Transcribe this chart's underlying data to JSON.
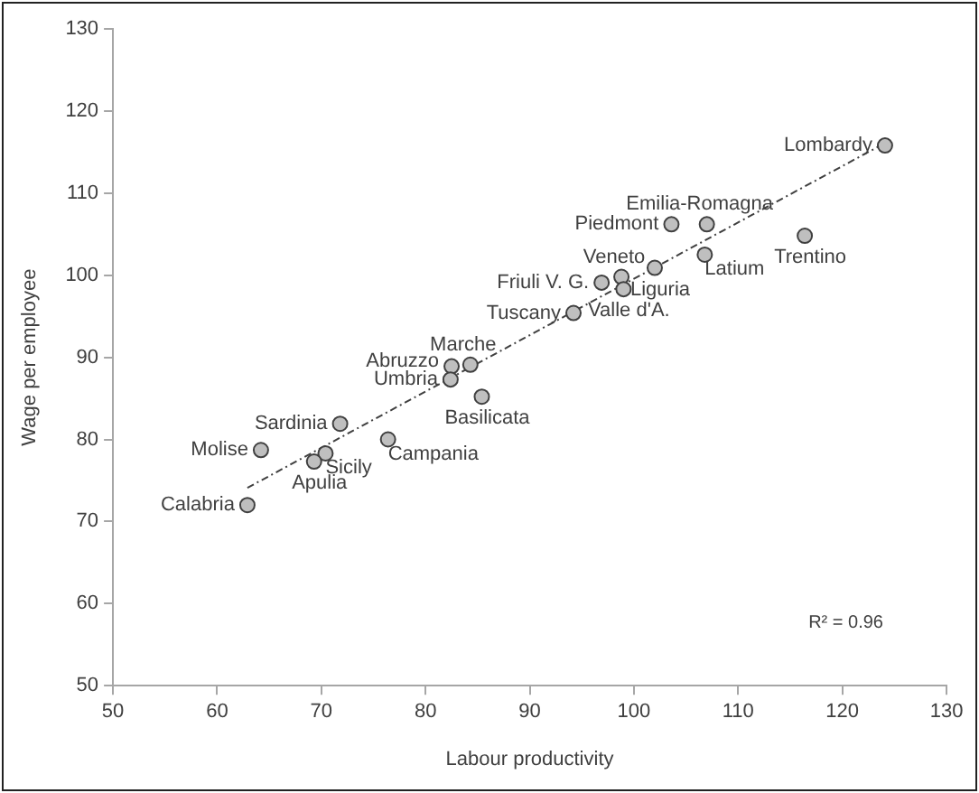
{
  "chart_data": {
    "type": "scatter",
    "xlabel": "Labour productivity",
    "ylabel": "Wage per employee",
    "xlim": [
      50,
      130
    ],
    "xticks": [
      50,
      60,
      70,
      80,
      90,
      100,
      110,
      120,
      130
    ],
    "ylim": [
      50,
      130
    ],
    "yticks": [
      50,
      60,
      70,
      80,
      90,
      100,
      110,
      120,
      130
    ],
    "grid": false,
    "legend": false,
    "series": [
      {
        "marker": "circle",
        "color": "#bfbfbf",
        "x": [
          124.1,
          107.0,
          103.6,
          116.4,
          106.8,
          98.8,
          102.0,
          96.9,
          99.0,
          94.2,
          84.3,
          82.5,
          82.4,
          85.4,
          71.8,
          64.2,
          76.4,
          70.4,
          69.3,
          62.9
        ],
        "values": [
          115.8,
          106.2,
          106.2,
          104.8,
          102.5,
          99.8,
          100.9,
          99.1,
          98.3,
          95.4,
          89.1,
          88.9,
          87.3,
          85.2,
          81.9,
          78.7,
          80.0,
          78.3,
          77.3,
          72.0
        ]
      },
      {
        "type": "line",
        "marker": "none",
        "line_style": "dashed",
        "color": "#404040",
        "x": [
          62.9,
          124.1
        ],
        "values": [
          74.1,
          116.1
        ]
      }
    ],
    "annotations": [
      {
        "text": "Lombardy",
        "x": 124.1,
        "y": 115.8
      },
      {
        "text": "Emilia-Romagna",
        "x": 107.0,
        "y": 106.2
      },
      {
        "text": "Piedmont",
        "x": 103.6,
        "y": 106.2
      },
      {
        "text": "Trentino",
        "x": 116.4,
        "y": 104.8
      },
      {
        "text": "Latium",
        "x": 106.8,
        "y": 102.5
      },
      {
        "text": "Veneto",
        "x": 98.8,
        "y": 99.8
      },
      {
        "text": "Liguria",
        "x": 102.0,
        "y": 100.9
      },
      {
        "text": "Friuli V. G.",
        "x": 96.9,
        "y": 99.1
      },
      {
        "text": "Valle d'A.",
        "x": 99.0,
        "y": 98.3
      },
      {
        "text": "Tuscany",
        "x": 94.2,
        "y": 95.4
      },
      {
        "text": "Marche",
        "x": 84.3,
        "y": 89.1
      },
      {
        "text": "Abruzzo",
        "x": 82.5,
        "y": 88.9
      },
      {
        "text": "Umbria",
        "x": 82.4,
        "y": 87.3
      },
      {
        "text": "Basilicata",
        "x": 85.4,
        "y": 85.2
      },
      {
        "text": "Sardinia",
        "x": 71.8,
        "y": 81.9
      },
      {
        "text": "Molise",
        "x": 64.2,
        "y": 78.7
      },
      {
        "text": "Campania",
        "x": 76.4,
        "y": 80.0
      },
      {
        "text": "Sicily",
        "x": 70.4,
        "y": 78.3
      },
      {
        "text": "Apulia",
        "x": 69.3,
        "y": 77.3
      },
      {
        "text": "Calabria",
        "x": 62.9,
        "y": 72.0
      },
      "R² = 0.96"
    ]
  }
}
